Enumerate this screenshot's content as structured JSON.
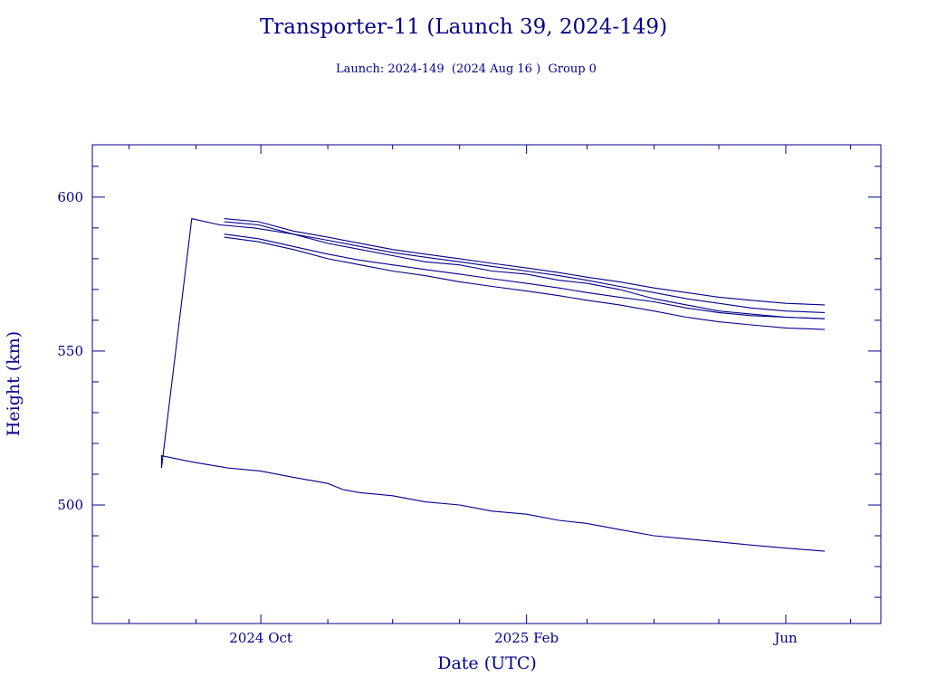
{
  "chart_data": {
    "type": "line",
    "title": "Transporter-11 (Launch 39, 2024-149)",
    "subtitle": "Launch: 2024-149  (2024 Aug 16 )  Group 0",
    "xlabel": "Date (UTC)",
    "ylabel": "Height (km)",
    "xlim": [
      "2024-07-15",
      "2025-07-15"
    ],
    "ylim": [
      461.5,
      617
    ],
    "grid": false,
    "x_ticks": [
      {
        "x": "2024-10-01",
        "label": "2024 Oct"
      },
      {
        "x": "2025-02-01",
        "label": "2025 Feb"
      },
      {
        "x": "2025-06-01",
        "label": "Jun"
      }
    ],
    "y_ticks": [
      500,
      550,
      600
    ],
    "line_color": "#00008b",
    "series": [
      {
        "points": [
          [
            "2024-08-16",
            512
          ],
          [
            "2024-08-16",
            516
          ],
          [
            "2024-08-30",
            514
          ],
          [
            "2024-09-16",
            512
          ],
          [
            "2024-10-01",
            511
          ],
          [
            "2024-10-16",
            509
          ],
          [
            "2024-11-01",
            507
          ],
          [
            "2024-11-08",
            505
          ],
          [
            "2024-11-16",
            504
          ],
          [
            "2024-12-01",
            503
          ],
          [
            "2024-12-16",
            501
          ],
          [
            "2025-01-01",
            500
          ],
          [
            "2025-01-16",
            498
          ],
          [
            "2025-02-01",
            497
          ],
          [
            "2025-02-16",
            495
          ],
          [
            "2025-03-01",
            494
          ],
          [
            "2025-03-16",
            492
          ],
          [
            "2025-04-01",
            490
          ],
          [
            "2025-04-16",
            489
          ],
          [
            "2025-05-01",
            488
          ],
          [
            "2025-05-16",
            487
          ],
          [
            "2025-06-01",
            486
          ],
          [
            "2025-06-19",
            485
          ]
        ]
      },
      {
        "points": [
          [
            "2024-08-16",
            512
          ],
          [
            "2024-08-30",
            593
          ],
          [
            "2024-09-12",
            591
          ],
          [
            "2024-09-28",
            590
          ],
          [
            "2024-10-16",
            588
          ],
          [
            "2024-11-01",
            585
          ],
          [
            "2024-11-16",
            583
          ],
          [
            "2024-12-01",
            581
          ],
          [
            "2024-12-16",
            579
          ],
          [
            "2025-01-01",
            578
          ],
          [
            "2025-01-16",
            576
          ],
          [
            "2025-02-01",
            575
          ],
          [
            "2025-02-16",
            573
          ],
          [
            "2025-03-01",
            572
          ],
          [
            "2025-03-16",
            570
          ],
          [
            "2025-04-01",
            567
          ],
          [
            "2025-04-16",
            565
          ],
          [
            "2025-05-01",
            563
          ],
          [
            "2025-05-16",
            562
          ],
          [
            "2025-06-01",
            561
          ],
          [
            "2025-06-19",
            560.5
          ]
        ]
      },
      {
        "points": [
          [
            "2024-09-14",
            592
          ],
          [
            "2024-09-30",
            591
          ],
          [
            "2024-10-16",
            588
          ],
          [
            "2024-11-01",
            586
          ],
          [
            "2024-11-16",
            584
          ],
          [
            "2024-12-01",
            582
          ],
          [
            "2024-12-16",
            580.5
          ],
          [
            "2025-01-01",
            579
          ],
          [
            "2025-01-16",
            577.5
          ],
          [
            "2025-02-01",
            576
          ],
          [
            "2025-02-16",
            574.5
          ],
          [
            "2025-03-01",
            573
          ],
          [
            "2025-03-16",
            571
          ],
          [
            "2025-04-01",
            569
          ],
          [
            "2025-04-16",
            567
          ],
          [
            "2025-05-01",
            565.5
          ],
          [
            "2025-05-16",
            564
          ],
          [
            "2025-06-01",
            563
          ],
          [
            "2025-06-19",
            562.5
          ]
        ]
      },
      {
        "points": [
          [
            "2024-09-14",
            593
          ],
          [
            "2024-09-30",
            592
          ],
          [
            "2024-10-16",
            589
          ],
          [
            "2024-11-01",
            587
          ],
          [
            "2024-11-16",
            585
          ],
          [
            "2024-12-01",
            583
          ],
          [
            "2024-12-16",
            581.5
          ],
          [
            "2025-01-01",
            580
          ],
          [
            "2025-01-16",
            578.5
          ],
          [
            "2025-02-01",
            577
          ],
          [
            "2025-02-16",
            575.5
          ],
          [
            "2025-03-01",
            574
          ],
          [
            "2025-03-16",
            572.5
          ],
          [
            "2025-04-01",
            570.5
          ],
          [
            "2025-04-16",
            569
          ],
          [
            "2025-05-01",
            567.5
          ],
          [
            "2025-05-16",
            566.5
          ],
          [
            "2025-06-01",
            565.5
          ],
          [
            "2025-06-19",
            565
          ]
        ]
      },
      {
        "points": [
          [
            "2024-09-14",
            588
          ],
          [
            "2024-09-30",
            586.5
          ],
          [
            "2024-10-16",
            584
          ],
          [
            "2024-11-01",
            581.5
          ],
          [
            "2024-11-16",
            579.5
          ],
          [
            "2024-12-01",
            578
          ],
          [
            "2024-12-16",
            576.5
          ],
          [
            "2025-01-01",
            575
          ],
          [
            "2025-01-16",
            573.5
          ],
          [
            "2025-02-01",
            572
          ],
          [
            "2025-02-16",
            570.5
          ],
          [
            "2025-03-01",
            569
          ],
          [
            "2025-03-16",
            567.5
          ],
          [
            "2025-04-01",
            566
          ],
          [
            "2025-04-16",
            564
          ],
          [
            "2025-05-01",
            562.5
          ],
          [
            "2025-05-16",
            561.5
          ],
          [
            "2025-06-01",
            561
          ],
          [
            "2025-06-19",
            560.5
          ]
        ]
      },
      {
        "points": [
          [
            "2024-09-14",
            587
          ],
          [
            "2024-09-30",
            585.5
          ],
          [
            "2024-10-16",
            583
          ],
          [
            "2024-11-01",
            580
          ],
          [
            "2024-11-16",
            578
          ],
          [
            "2024-12-01",
            576
          ],
          [
            "2024-12-16",
            574.5
          ],
          [
            "2025-01-01",
            572.5
          ],
          [
            "2025-01-16",
            571
          ],
          [
            "2025-02-01",
            569.5
          ],
          [
            "2025-02-16",
            568
          ],
          [
            "2025-03-01",
            566.5
          ],
          [
            "2025-03-16",
            565
          ],
          [
            "2025-04-01",
            563
          ],
          [
            "2025-04-16",
            561
          ],
          [
            "2025-05-01",
            559.5
          ],
          [
            "2025-05-16",
            558.5
          ],
          [
            "2025-06-01",
            557.5
          ],
          [
            "2025-06-19",
            557
          ]
        ]
      }
    ]
  }
}
